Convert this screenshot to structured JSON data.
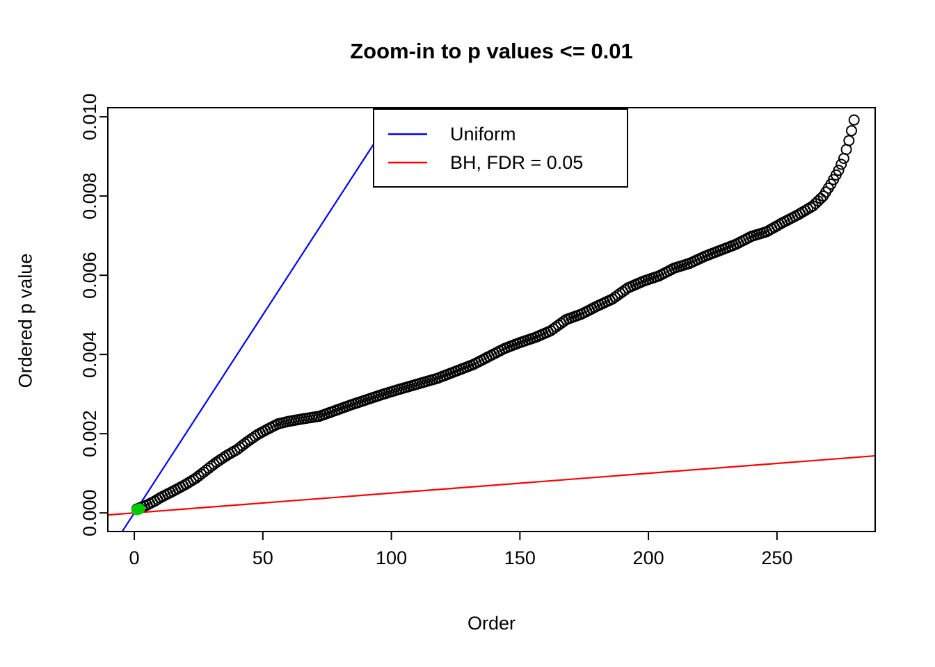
{
  "chart_data": {
    "type": "scatter",
    "title": "Zoom-in to p values <= 0.01",
    "xlabel": "Order",
    "ylabel": "Ordered p value",
    "xlim": [
      -10.3,
      288.2
    ],
    "ylim": [
      -0.00047,
      0.01023
    ],
    "x_ticks": [
      0,
      50,
      100,
      150,
      200,
      250
    ],
    "x_tick_labels": [
      "0",
      "50",
      "100",
      "150",
      "200",
      "250"
    ],
    "y_ticks": [
      0.0,
      0.002,
      0.004,
      0.006,
      0.008,
      0.01
    ],
    "y_tick_labels": [
      "0.000",
      "0.002",
      "0.004",
      "0.006",
      "0.008",
      "0.010"
    ],
    "grid": "off",
    "n_points": 280,
    "marker": {
      "shape": "open-circle",
      "color": "#000000",
      "radius": 7
    },
    "scatter_anchors": [
      [
        1,
        0.0001
      ],
      [
        3,
        0.00015
      ],
      [
        5,
        0.0002
      ],
      [
        8,
        0.0003
      ],
      [
        10,
        0.00038
      ],
      [
        13,
        0.00048
      ],
      [
        16,
        0.00058
      ],
      [
        20,
        0.00072
      ],
      [
        24,
        0.00088
      ],
      [
        28,
        0.00108
      ],
      [
        32,
        0.00128
      ],
      [
        36,
        0.00145
      ],
      [
        40,
        0.0016
      ],
      [
        44,
        0.0018
      ],
      [
        48,
        0.00198
      ],
      [
        52,
        0.00212
      ],
      [
        56,
        0.00225
      ],
      [
        60,
        0.00231
      ],
      [
        66,
        0.00238
      ],
      [
        72,
        0.00244
      ],
      [
        78,
        0.00258
      ],
      [
        84,
        0.00272
      ],
      [
        90,
        0.00285
      ],
      [
        96,
        0.00298
      ],
      [
        102,
        0.0031
      ],
      [
        110,
        0.00325
      ],
      [
        118,
        0.0034
      ],
      [
        126,
        0.0036
      ],
      [
        132,
        0.00375
      ],
      [
        138,
        0.00395
      ],
      [
        144,
        0.00415
      ],
      [
        150,
        0.0043
      ],
      [
        156,
        0.00443
      ],
      [
        162,
        0.0046
      ],
      [
        168,
        0.00488
      ],
      [
        174,
        0.00502
      ],
      [
        180,
        0.00522
      ],
      [
        186,
        0.0054
      ],
      [
        192,
        0.00568
      ],
      [
        198,
        0.00585
      ],
      [
        204,
        0.00598
      ],
      [
        210,
        0.00618
      ],
      [
        216,
        0.0063
      ],
      [
        222,
        0.00648
      ],
      [
        228,
        0.00663
      ],
      [
        234,
        0.00678
      ],
      [
        240,
        0.00698
      ],
      [
        246,
        0.0071
      ],
      [
        252,
        0.00732
      ],
      [
        258,
        0.00752
      ],
      [
        264,
        0.00775
      ],
      [
        268,
        0.008
      ],
      [
        271,
        0.0083
      ],
      [
        274,
        0.00865
      ],
      [
        276,
        0.00895
      ],
      [
        278,
        0.0094
      ],
      [
        279,
        0.00965
      ],
      [
        280,
        0.00992
      ]
    ],
    "lines": [
      {
        "name": "Uniform",
        "color": "#0000ff",
        "slope": 0.0001,
        "intercept": 0
      },
      {
        "name": "BH, FDR = 0.05",
        "color": "#ff0000",
        "slope": 5e-06,
        "intercept": 0
      }
    ],
    "significant_points": {
      "color": "#00CD00",
      "points": [
        [
          1,
          8e-05
        ],
        [
          2,
          0.0001
        ]
      ]
    },
    "legend": {
      "position": "top-center",
      "entries": [
        {
          "label": "Uniform",
          "color": "#0000ff"
        },
        {
          "label": "BH, FDR = 0.05",
          "color": "#ff0000"
        }
      ]
    }
  }
}
